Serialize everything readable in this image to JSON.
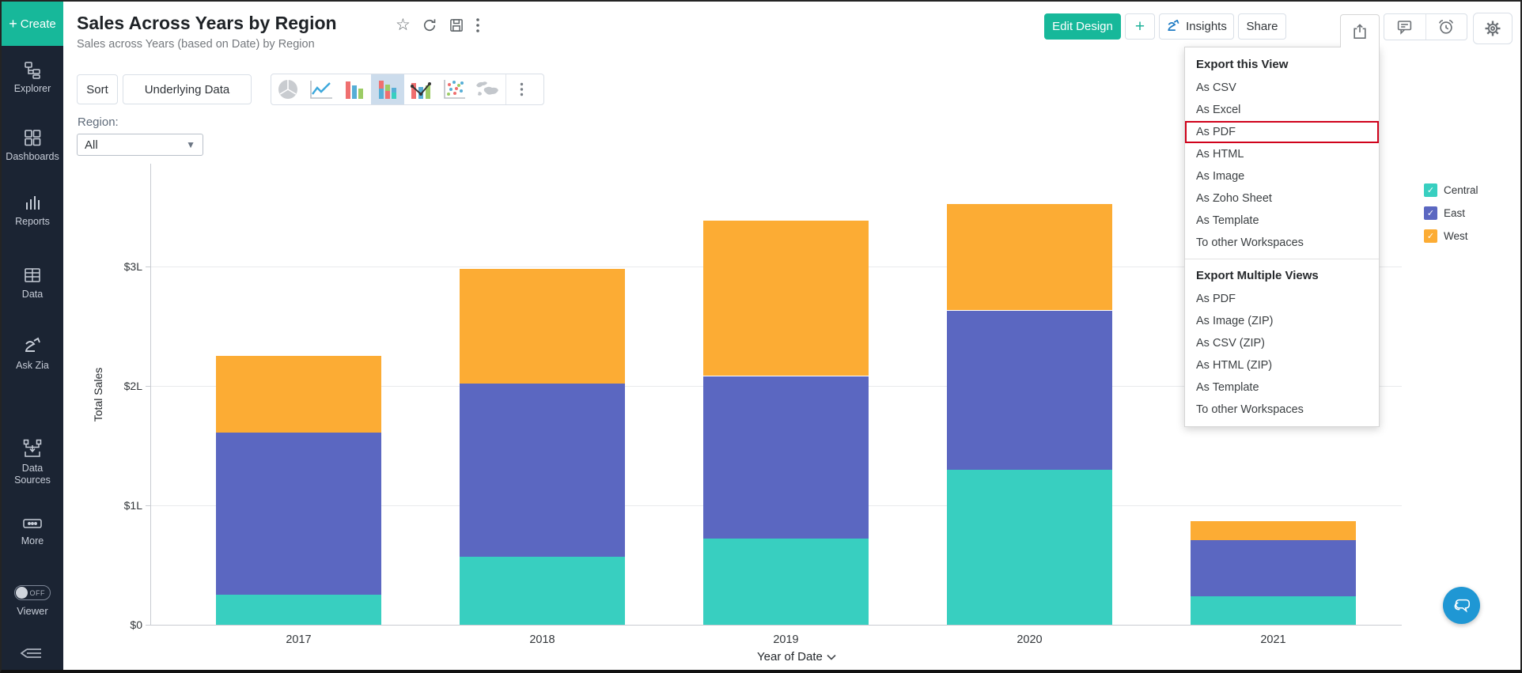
{
  "sidebar": {
    "create_label": "Create",
    "items": [
      {
        "id": "explorer",
        "label": "Explorer",
        "icon": "explorer-icon"
      },
      {
        "id": "dashboards",
        "label": "Dashboards",
        "icon": "dashboards-icon"
      },
      {
        "id": "reports",
        "label": "Reports",
        "icon": "reports-icon"
      },
      {
        "id": "data",
        "label": "Data",
        "icon": "data-icon"
      },
      {
        "id": "ask-zia",
        "label": "Ask Zia",
        "icon": "zia-icon"
      },
      {
        "id": "data-sources",
        "label": "Data Sources",
        "icon": "data-sources-icon"
      },
      {
        "id": "more",
        "label": "More",
        "icon": "more-icon"
      }
    ],
    "viewer": {
      "label": "Viewer",
      "state": "OFF"
    }
  },
  "header": {
    "title": "Sales Across Years by Region",
    "subtitle": "Sales across Years (based on Date) by Region",
    "edit_design_label": "Edit Design",
    "plus_label": "+",
    "insights_label": "Insights",
    "share_label": "Share"
  },
  "toolbar": {
    "sort_label": "Sort",
    "underlying_data_label": "Underlying Data",
    "chart_types": [
      {
        "id": "pie",
        "icon": "pie-chart-icon",
        "selected": false
      },
      {
        "id": "line",
        "icon": "line-chart-icon",
        "selected": false
      },
      {
        "id": "bar",
        "icon": "bar-chart-icon",
        "selected": false
      },
      {
        "id": "stacked-bar",
        "icon": "stacked-bar-chart-icon",
        "selected": true
      },
      {
        "id": "combo",
        "icon": "combo-chart-icon",
        "selected": false
      },
      {
        "id": "scatter",
        "icon": "scatter-chart-icon",
        "selected": false
      },
      {
        "id": "map",
        "icon": "map-chart-icon",
        "selected": false
      }
    ]
  },
  "filter": {
    "label": "Region:",
    "value": "All"
  },
  "export_menu": {
    "sections": [
      {
        "title": "Export this View",
        "items": [
          "As CSV",
          "As Excel",
          "As PDF",
          "As HTML",
          "As Image",
          "As Zoho Sheet",
          "As Template",
          "To other Workspaces"
        ],
        "highlighted_item": "As PDF"
      },
      {
        "title": "Export Multiple Views",
        "items": [
          "As PDF",
          "As Image (ZIP)",
          "As CSV (ZIP)",
          "As HTML (ZIP)",
          "As Template",
          "To other Workspaces"
        ],
        "highlighted_item": null
      }
    ]
  },
  "legend": [
    {
      "label": "Central",
      "color": "#38cfc0",
      "checked": true
    },
    {
      "label": "East",
      "color": "#5b67c1",
      "checked": true
    },
    {
      "label": "West",
      "color": "#fcac34",
      "checked": true
    }
  ],
  "chart_data": {
    "type": "bar",
    "stacked": true,
    "categories": [
      "2017",
      "2018",
      "2019",
      "2020",
      "2021"
    ],
    "series": [
      {
        "name": "Central",
        "color": "#38cfc0",
        "values": [
          0.25,
          0.57,
          0.72,
          1.3,
          0.24
        ]
      },
      {
        "name": "East",
        "color": "#5b67c1",
        "values": [
          1.36,
          1.45,
          1.36,
          1.33,
          0.47
        ]
      },
      {
        "name": "West",
        "color": "#fcac34",
        "values": [
          0.64,
          0.96,
          1.3,
          0.89,
          0.16
        ]
      }
    ],
    "totals": [
      2.25,
      2.98,
      3.38,
      3.52,
      0.87
    ],
    "xlabel": "Year of Date",
    "ylabel": "Total Sales",
    "yticks": [
      "$0",
      "$1L",
      "$2L",
      "$3L"
    ],
    "ylim": [
      0,
      3.86
    ],
    "unit": "L",
    "grid": true,
    "legend_position": "right"
  },
  "accent_colors": {
    "green": "#17b89a",
    "selected_icon_bg": "#ccdcec",
    "highlight_red": "#d0021b",
    "chat_blue": "#1f97d4",
    "sidebar_bg": "#1b2433"
  }
}
